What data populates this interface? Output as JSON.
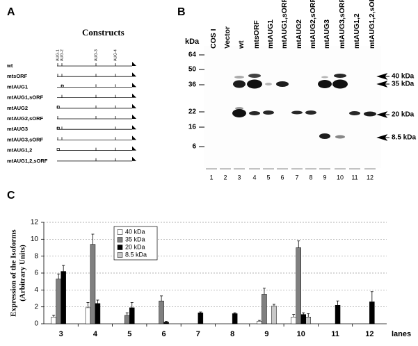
{
  "panel_a": {
    "label": "A",
    "title": "Constructs",
    "aug_labels": [
      "AUG-1",
      "AUG-2",
      "AUG-3",
      "AUG-4"
    ],
    "constructs": [
      "wt",
      "mtsORF",
      "mtAUG1",
      "mtAUG1,sORF",
      "mtAUG2",
      "mtAUG2,sORF",
      "mtAUG3",
      "mtAUG3,sORF",
      "mtAUG1,2",
      "mtAUG1,2,sORF"
    ]
  },
  "panel_b": {
    "label": "B",
    "unit": "kDa",
    "markers": [
      "64",
      "50",
      "36",
      "22",
      "16",
      "6"
    ],
    "lanes": [
      "COS I",
      "Vector",
      "wt",
      "mtsORF",
      "mtAUG1",
      "mtAUG1,sORF",
      "mtAUG2",
      "mtAUG2,sORF",
      "mtAUG3",
      "mtAUG3,sORF",
      "mtAUG1,2",
      "mtAUG1,2,sORF"
    ],
    "lane_numbers": [
      "1",
      "2",
      "3",
      "4",
      "5",
      "6",
      "7",
      "8",
      "9",
      "10",
      "11",
      "12"
    ],
    "band_labels": [
      "40 kDa",
      "35 kDa",
      "20 kDa",
      "8.5 kDa"
    ]
  },
  "chart_data": {
    "type": "bar",
    "panel_label": "C",
    "ylabel": [
      "Expression of the Isoforms",
      "(Arbitrary Units)"
    ],
    "xlabel": "lanes",
    "categories": [
      "3",
      "4",
      "5",
      "6",
      "7",
      "8",
      "9",
      "10",
      "11",
      "12"
    ],
    "series": [
      {
        "name": "40 kDa",
        "color": "#ffffff",
        "values": [
          0.8,
          1.9,
          0,
          0,
          0,
          0,
          0.3,
          0.8,
          0,
          0
        ],
        "errors": [
          0.2,
          0.6,
          0,
          0,
          0,
          0,
          0.1,
          0.3,
          0,
          0
        ]
      },
      {
        "name": "35 kDa",
        "color": "#808080",
        "values": [
          5.3,
          9.4,
          1.0,
          2.7,
          0,
          0,
          3.5,
          9.0,
          0,
          0
        ],
        "errors": [
          0.6,
          1.2,
          0.3,
          0.6,
          0,
          0,
          0.7,
          0.8,
          0,
          0
        ]
      },
      {
        "name": "20 kDa",
        "color": "#000000",
        "values": [
          6.2,
          2.4,
          1.9,
          0.2,
          1.3,
          1.2,
          0,
          1.1,
          2.2,
          2.6
        ],
        "errors": [
          0.7,
          0.4,
          0.6,
          0.1,
          0.1,
          0.1,
          0,
          0.2,
          0.5,
          1.2
        ]
      },
      {
        "name": "8.5 kDa",
        "color": "#c8c8c8",
        "values": [
          0,
          0,
          0,
          0,
          0,
          0,
          2.1,
          0.8,
          0,
          0
        ],
        "errors": [
          0,
          0,
          0,
          0,
          0,
          0,
          0.2,
          0.4,
          0,
          0
        ]
      }
    ],
    "ylim": [
      0,
      12
    ],
    "yticks": [
      0,
      2,
      4,
      6,
      8,
      10,
      12
    ],
    "grid": true
  }
}
